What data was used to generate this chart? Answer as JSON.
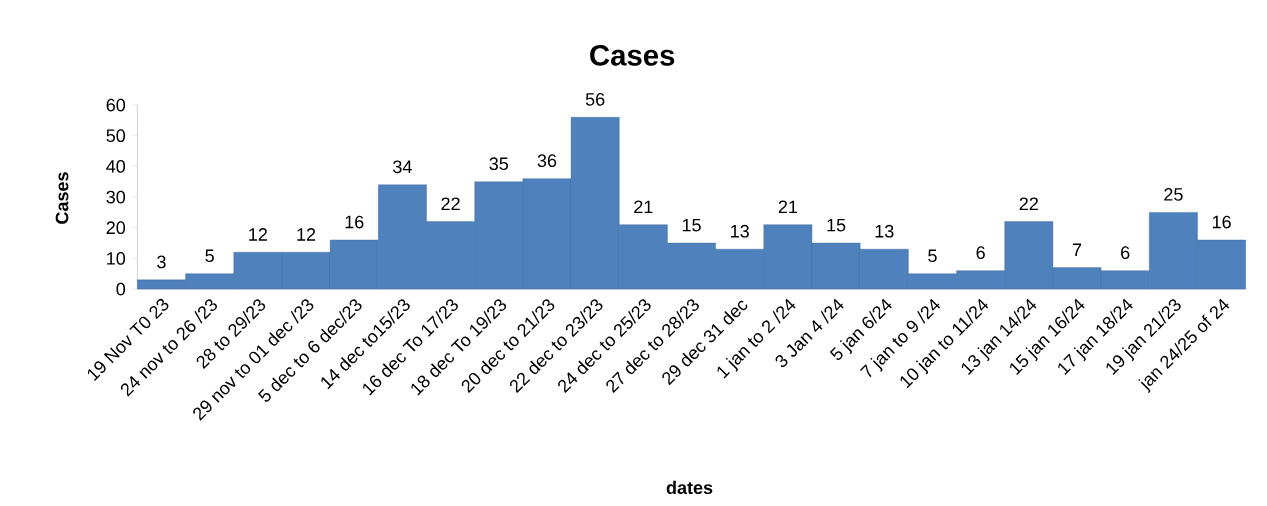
{
  "chart_data": {
    "type": "bar",
    "title": "Cases",
    "xlabel": "dates",
    "ylabel": "Cases",
    "categories": [
      "19 Nov T0 23",
      "24 nov to 26 /23",
      "28 to 29/23",
      "29 nov to 01 dec /23",
      "5 dec to 6 dec/23",
      "14 dec to15/23",
      "16 dec To 17/23",
      "18 dec To 19/23",
      "20 dec to 21/23",
      "22 dec to 23/23",
      "24 dec to 25/23",
      "27 dec to 28/23",
      "29 dec 31 dec",
      "1 jan to 2 /24",
      "3 Jan 4 /24",
      "5 jan 6/24",
      "7 jan to 9 /24",
      "10 jan to 11/24",
      "13 jan 14/24",
      "15 jan 16/24",
      "17 jan 18/24",
      "19 jan 21/23",
      "jan 24/25 of 24"
    ],
    "values": [
      3,
      5,
      12,
      12,
      16,
      34,
      22,
      35,
      36,
      56,
      21,
      15,
      13,
      21,
      15,
      13,
      5,
      6,
      22,
      7,
      6,
      25,
      16
    ],
    "color": "#4f81bd",
    "ylim": [
      0,
      60
    ],
    "yticks": [
      0,
      10,
      20,
      30,
      40,
      50,
      60
    ],
    "data_labels": true,
    "grid": false
  }
}
